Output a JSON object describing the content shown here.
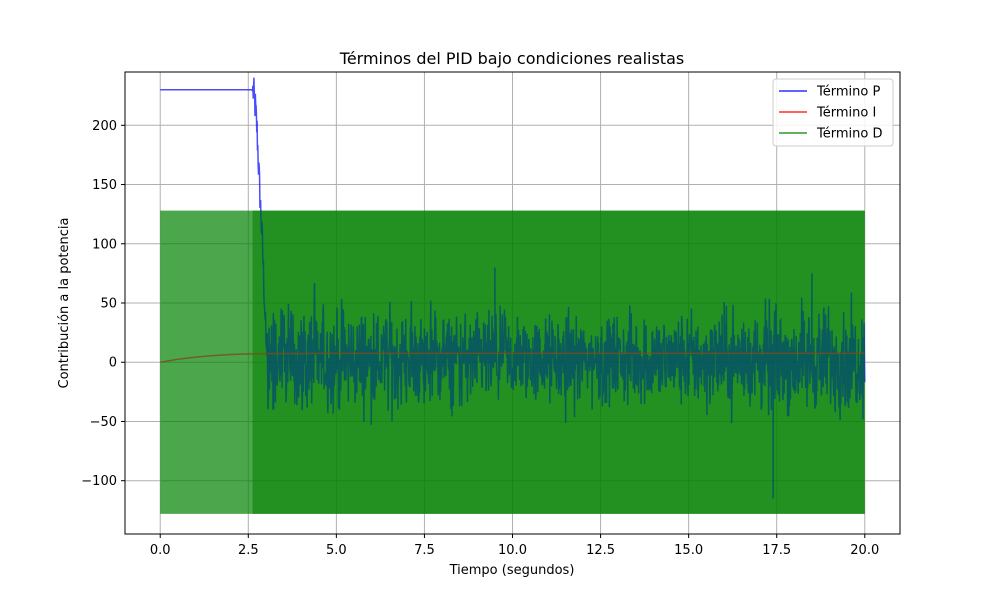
{
  "chart_data": {
    "type": "line",
    "title": "Términos del PID bajo condiciones realistas",
    "xlabel": "Tiempo (segundos)",
    "ylabel": "Contribución a la potencia",
    "xlim": [
      -1.0,
      21.0
    ],
    "ylim": [
      -145,
      245
    ],
    "x_ticks": [
      0.0,
      2.5,
      5.0,
      7.5,
      10.0,
      12.5,
      15.0,
      17.5,
      20.0
    ],
    "x_tick_labels": [
      "0.0",
      "2.5",
      "5.0",
      "7.5",
      "10.0",
      "12.5",
      "15.0",
      "17.5",
      "20.0"
    ],
    "y_ticks": [
      -100,
      -50,
      0,
      50,
      100,
      150,
      200
    ],
    "y_tick_labels": [
      "−100",
      "−50",
      "0",
      "50",
      "100",
      "150",
      "200"
    ],
    "grid": true,
    "legend_position": "top-right",
    "series": [
      {
        "name": "Término P",
        "color": "#0000ff",
        "alpha": 0.7,
        "points": [
          [
            0.0,
            230
          ],
          [
            2.6,
            230
          ],
          [
            2.65,
            228
          ],
          [
            2.7,
            215
          ],
          [
            2.75,
            195
          ],
          [
            2.8,
            160
          ],
          [
            2.85,
            130
          ],
          [
            2.9,
            100
          ],
          [
            2.95,
            60
          ],
          [
            3.0,
            20
          ],
          [
            3.05,
            5
          ],
          [
            3.1,
            2
          ],
          [
            20.0,
            2
          ]
        ]
      },
      {
        "name": "Término I",
        "color": "#ff0000",
        "alpha": 0.7,
        "points": [
          [
            0.0,
            0
          ],
          [
            0.5,
            2.5
          ],
          [
            1.0,
            4.3
          ],
          [
            1.5,
            5.6
          ],
          [
            2.0,
            6.5
          ],
          [
            2.5,
            7.0
          ],
          [
            3.0,
            7.3
          ],
          [
            5.0,
            7.5
          ],
          [
            20.0,
            7.5
          ]
        ]
      },
      {
        "name": "Término D",
        "color": "#008000",
        "alpha": 0.7,
        "band": {
          "x_start": 0.0,
          "x_end": 20.0,
          "low": -128,
          "high": 128
        },
        "noise_envelope": [
          [
            2.9,
            130
          ],
          [
            3.0,
            100
          ],
          [
            3.2,
            75
          ],
          [
            4.0,
            70
          ],
          [
            7.5,
            65
          ],
          [
            10.0,
            60
          ],
          [
            12.5,
            60
          ],
          [
            15.0,
            65
          ],
          [
            17.5,
            72
          ],
          [
            20.0,
            70
          ]
        ],
        "extremes": [
          [
            9.5,
            80
          ],
          [
            17.4,
            -115
          ],
          [
            18.5,
            75
          ],
          [
            3.2,
            -40
          ]
        ]
      }
    ]
  }
}
